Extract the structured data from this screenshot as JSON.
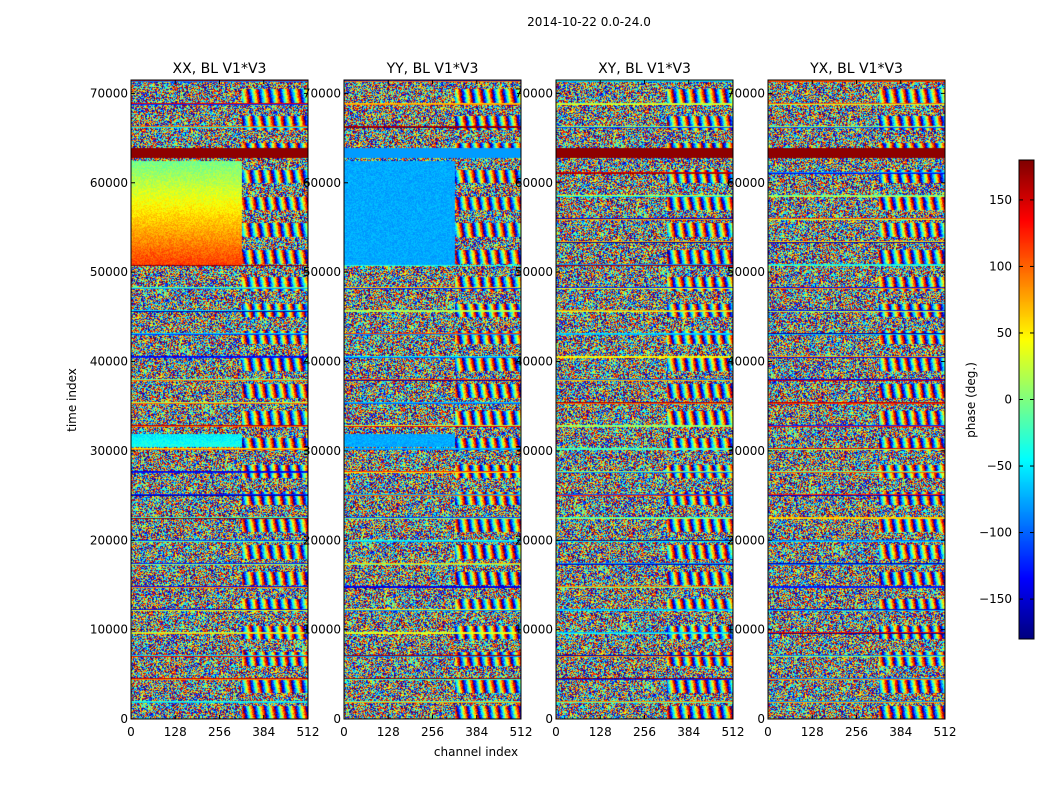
{
  "chart_data": {
    "type": "heatmap",
    "suptitle": "2014-10-22 0.0-24.0",
    "xlabel": "channel index",
    "ylabel": "time index",
    "xlim": [
      0,
      512
    ],
    "ylim": [
      0,
      71500
    ],
    "xticks": [
      "0",
      "128",
      "256",
      "384",
      "512"
    ],
    "xtick_values": [
      0,
      128,
      256,
      384,
      512
    ],
    "yticks": [
      "0",
      "10000",
      "20000",
      "30000",
      "40000",
      "50000",
      "60000",
      "70000"
    ],
    "ytick_values": [
      0,
      10000,
      20000,
      30000,
      40000,
      50000,
      60000,
      70000
    ],
    "colormap": "jet",
    "panels": [
      {
        "title": "XX, BL V1*V3",
        "coherent_phase": 35,
        "coherent_spread": 30
      },
      {
        "title": "YY, BL V1*V3",
        "coherent_phase": -75,
        "coherent_spread": 20
      },
      {
        "title": "XY, BL V1*V3",
        "coherent_phase": null,
        "coherent_spread": null
      },
      {
        "title": "YX, BL V1*V3",
        "coherent_phase": null,
        "coherent_spread": null
      }
    ],
    "colorbar": {
      "label": "phase (deg.)",
      "range": [
        -180,
        180
      ],
      "ticks": [
        150,
        100,
        50,
        0,
        -50,
        -100,
        -150
      ],
      "tick_labels": [
        "150",
        "100",
        "50",
        "0",
        "−50",
        "−100",
        "−150"
      ]
    }
  }
}
